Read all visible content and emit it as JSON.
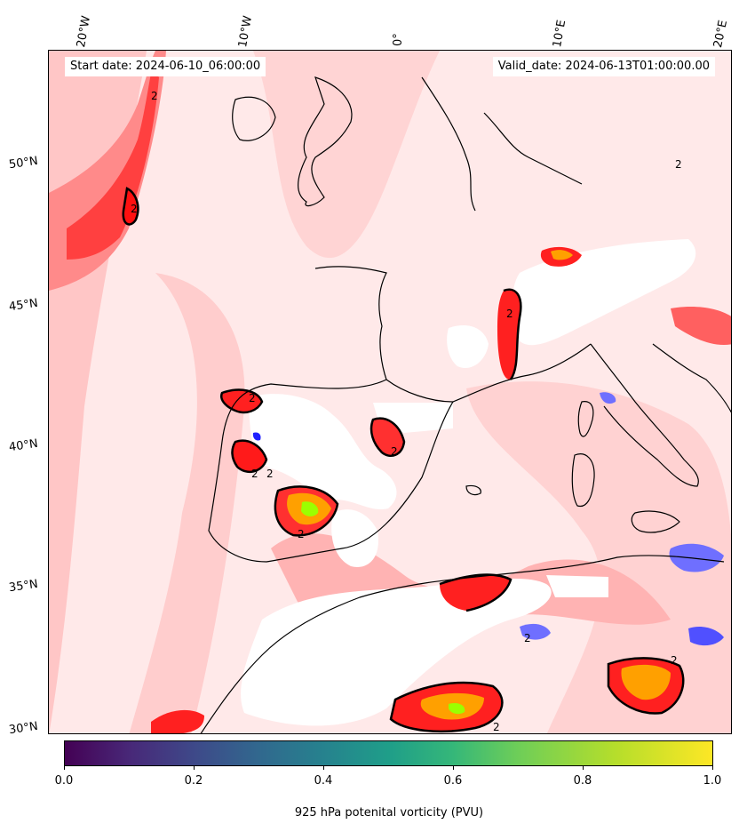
{
  "map": {
    "start_date_text": "Start date: 2024-06-10_06:00:00",
    "valid_date_text": "Valid_date: 2024-06-13T01:00:00.00",
    "contour_label": "2",
    "lon_labels": [
      "20°W",
      "10°W",
      "0°",
      "10°E",
      "20°E"
    ],
    "lat_labels": [
      "50°N",
      "45°N",
      "40°N",
      "35°N",
      "30°N"
    ]
  },
  "colorbar": {
    "title": "925 hPa potenital vorticity (PVU)",
    "colormap": "viridis",
    "range": [
      0.0,
      1.0
    ],
    "tick_labels": [
      "0.0",
      "0.2",
      "0.4",
      "0.6",
      "0.8",
      "1.0"
    ]
  },
  "colors": {
    "ocean_land_base": "#ffe9e9",
    "light_red": "#ffc0c0",
    "mid_red": "#ff8080",
    "strong_red": "#ff2020",
    "orange": "#ffa000",
    "yellow_green": "#9bff00",
    "blue": "#6f6fff",
    "coastline": "#000000"
  }
}
